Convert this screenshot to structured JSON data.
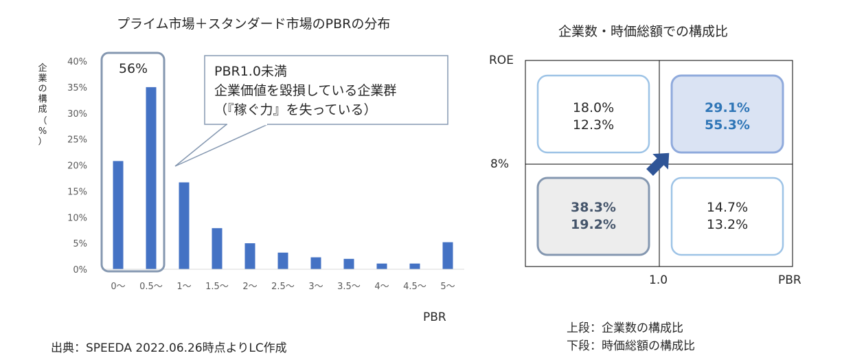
{
  "left_chart": {
    "title": "プライム市場＋スタンダード市場のPBRの分布",
    "ylabel_chars": [
      "企",
      "業",
      "の",
      "構",
      "成",
      "（",
      "%",
      "）"
    ],
    "xlabel": "PBR",
    "highlight_label": "56%",
    "callout_lines": [
      "PBR1.0未満",
      "企業価値を毀損している企業群",
      "（『稼ぐ力』を失っている）"
    ]
  },
  "chart_data": [
    {
      "type": "bar",
      "title": "プライム市場＋スタンダード市場のPBRの分布",
      "xlabel": "PBR",
      "ylabel": "企業の構成（%）",
      "categories": [
        "0～",
        "0.5～",
        "1～",
        "1.5～",
        "2～",
        "2.5～",
        "3～",
        "3.5～",
        "4～",
        "4.5～",
        "5～"
      ],
      "values": [
        20.8,
        35,
        16.7,
        7.9,
        5,
        3.2,
        2.3,
        2,
        1.1,
        1.1,
        5.2
      ],
      "ylim": [
        0,
        40
      ],
      "yticks": [
        0,
        5,
        10,
        15,
        20,
        25,
        30,
        35,
        40
      ],
      "ytick_labels": [
        "0%",
        "5%",
        "10%",
        "15%",
        "20%",
        "25%",
        "30%",
        "35%",
        "40%"
      ],
      "grid": false,
      "bar_color": "#4472C4"
    },
    {
      "type": "table",
      "title": "企業数・時価総額での構成比",
      "x_axis": "PBR",
      "y_axis": "ROE",
      "x_split_label": "1.0",
      "y_split_label": "8%",
      "quadrants": {
        "top_left": {
          "company_share": "18.0%",
          "market_cap_share": "12.3%"
        },
        "top_right": {
          "company_share": "29.1%",
          "market_cap_share": "55.3%"
        },
        "bottom_left": {
          "company_share": "38.3%",
          "market_cap_share": "19.2%"
        },
        "bottom_right": {
          "company_share": "14.7%",
          "market_cap_share": "13.2%"
        }
      }
    }
  ],
  "quadrant_chart": {
    "title": "企業数・時価総額での構成比",
    "roe_label": "ROE",
    "pbr_label": "PBR",
    "x_split_label": "1.0",
    "y_split_label": "8%",
    "legend_upper": "上段：企業数の構成比",
    "legend_lower": "下段：時価総額の構成比"
  },
  "source": "出典：SPEEDA 2022.06.26時点よりLC作成",
  "colors": {
    "bar": "#4472C4",
    "highlight_border": "#8497B0",
    "quad_border": "#9DC3E6",
    "quad_highlight_fill": "#DAE3F3",
    "quad_highlight_border": "#8FAADC",
    "quad_highlight_text": "#2E75B6",
    "quad_gray_fill": "#EDEDED",
    "quad_gray_border": "#8497B0",
    "quad_gray_text": "#44546A",
    "arrow": "#2F5597"
  }
}
